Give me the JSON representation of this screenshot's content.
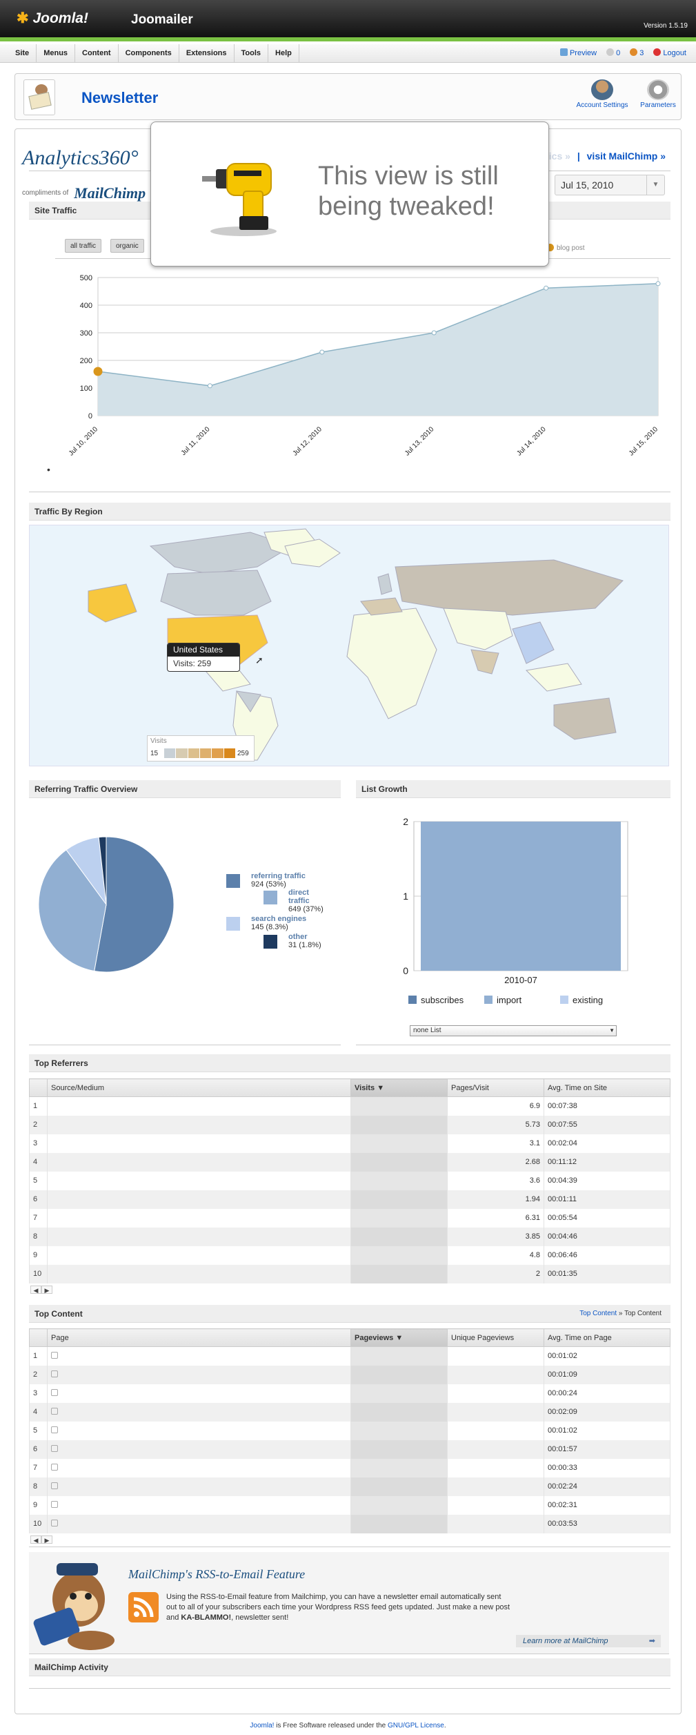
{
  "header": {
    "logo_text": "Joomla!",
    "app_title": "Joomailer",
    "version": "Version 1.5.19"
  },
  "menu": {
    "items": [
      "Site",
      "Menus",
      "Content",
      "Components",
      "Extensions",
      "Tools",
      "Help"
    ],
    "preview_label": "Preview",
    "messages_count": "0",
    "users_count": "3",
    "logout_label": "Logout"
  },
  "toolbar": {
    "title": "Newsletter",
    "account_settings_label": "Account Settings",
    "parameters_label": "Parameters"
  },
  "analytics": {
    "title": "Analytics360°",
    "compliments_of": "compliments of",
    "mailchimp_brand": "MailChimp",
    "link_google": "visit Google Analytics »",
    "link_separator": "|",
    "link_mailchimp": "visit MailChimp »",
    "date_label": "to",
    "date_value": "Jul 15, 2010",
    "overlay_message": "This view is still being tweaked!"
  },
  "site_traffic": {
    "header": "Site Traffic",
    "tabs": [
      "all traffic",
      "organic"
    ],
    "legend_blog_post": "blog post",
    "legend_bullet": "•"
  },
  "chart_data": [
    {
      "type": "area",
      "title": "",
      "categories": [
        "Jul 10, 2010",
        "Jul 11, 2010",
        "Jul 12, 2010",
        "Jul 13, 2010",
        "Jul 14, 2010",
        "Jul 15, 2010"
      ],
      "series": [
        {
          "values": [
            160,
            108,
            230,
            300,
            462,
            478
          ]
        }
      ],
      "yticks": [
        0,
        100,
        200,
        300,
        400,
        500
      ],
      "ylim": [
        0,
        500
      ],
      "grid": true,
      "colors": {
        "fill": "#d3e1e8",
        "line": "#8db3c5",
        "marker": "#d9961c"
      }
    },
    {
      "type": "pie",
      "title": "",
      "slices": [
        {
          "name": "referring traffic",
          "value": 924,
          "label": "924 (53%)",
          "color": "#5c80ab"
        },
        {
          "name": "direct traffic",
          "value": 649,
          "label": "649 (37%)",
          "color": "#91afd2"
        },
        {
          "name": "search engines",
          "value": 145,
          "label": "145 (8.3%)",
          "color": "#bcd0ef"
        },
        {
          "name": "other",
          "value": 31,
          "label": "31 (1.8%)",
          "color": "#1e3a5f"
        }
      ]
    },
    {
      "type": "bar",
      "title": "",
      "categories": [
        "2010-07"
      ],
      "series": [
        {
          "name": "import",
          "values": [
            2
          ]
        }
      ],
      "yticks": [
        0,
        1,
        2
      ],
      "ylim": [
        0,
        2
      ],
      "legend": [
        "subscribes",
        "import",
        "existing"
      ],
      "legend_colors": [
        "#5c80ab",
        "#91afd2",
        "#bcd0ef"
      ]
    }
  ],
  "traffic_by_region": {
    "header": "Traffic By Region",
    "tooltip_country": "United States",
    "tooltip_visits": "Visits: 259",
    "legend_title": "Visits",
    "legend_min": "15",
    "legend_max": "259",
    "legend_colors": [
      "#c8d0d6",
      "#d7cbb1",
      "#dcbf8c",
      "#deb06d",
      "#e0a04d",
      "#d9881c"
    ]
  },
  "referring_overview": {
    "header": "Referring Traffic Overview"
  },
  "list_growth": {
    "header": "List Growth",
    "select_value": "none List"
  },
  "top_referrers": {
    "header": "Top Referrers",
    "columns": [
      "Source/Medium",
      "Visits ▼",
      "Pages/Visit",
      "Avg. Time on Site"
    ],
    "rows": [
      {
        "n": "1",
        "pages": "6.9",
        "time": "00:07:38"
      },
      {
        "n": "2",
        "pages": "5.73",
        "time": "00:07:55"
      },
      {
        "n": "3",
        "pages": "3.1",
        "time": "00:02:04"
      },
      {
        "n": "4",
        "pages": "2.68",
        "time": "00:11:12"
      },
      {
        "n": "5",
        "pages": "3.6",
        "time": "00:04:39"
      },
      {
        "n": "6",
        "pages": "1.94",
        "time": "00:01:11"
      },
      {
        "n": "7",
        "pages": "6.31",
        "time": "00:05:54"
      },
      {
        "n": "8",
        "pages": "3.85",
        "time": "00:04:46"
      },
      {
        "n": "9",
        "pages": "4.8",
        "time": "00:06:46"
      },
      {
        "n": "10",
        "pages": "2",
        "time": "00:01:35"
      }
    ]
  },
  "top_content": {
    "header": "Top Content",
    "breadcrumb_link": "Top Content",
    "breadcrumb_current": "» Top Content",
    "columns": [
      "Page",
      "Pageviews ▼",
      "Unique Pageviews",
      "Avg. Time on Page"
    ],
    "rows": [
      {
        "n": "1",
        "time": "00:01:02"
      },
      {
        "n": "2",
        "time": "00:01:09"
      },
      {
        "n": "3",
        "time": "00:00:24"
      },
      {
        "n": "4",
        "time": "00:02:09"
      },
      {
        "n": "5",
        "time": "00:01:02"
      },
      {
        "n": "6",
        "time": "00:01:57"
      },
      {
        "n": "7",
        "time": "00:00:33"
      },
      {
        "n": "8",
        "time": "00:02:24"
      },
      {
        "n": "9",
        "time": "00:02:31"
      },
      {
        "n": "10",
        "time": "00:03:53"
      }
    ]
  },
  "mailchimp_promo": {
    "heading": "MailChimp's RSS-to-Email Feature",
    "body_1": "Using the RSS-to-Email feature from Mailchimp, you can have a newsletter email automatically sent out to all of your subscribers each time your Wordpress RSS feed gets updated. Just make a new post and ",
    "body_bold": "KA-BLAMMO!",
    "body_2": ", newsletter sent!",
    "learn_more": "Learn more at MailChimp"
  },
  "mailchimp_activity": {
    "header": "MailChimp Activity"
  },
  "footer": {
    "link_joomla": "Joomla!",
    "text": " is Free Software released under the ",
    "link_license": "GNU/GPL License",
    "end": "."
  }
}
